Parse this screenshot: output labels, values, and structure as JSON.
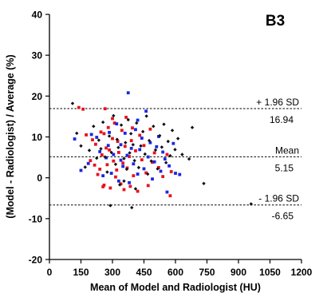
{
  "chart_data": {
    "type": "scatter",
    "panel_label": "B3",
    "xlabel": "Mean of Model and Radiologist (HU)",
    "ylabel": "(Model - Radiologist) / Average (%)",
    "xlim": [
      0,
      1200
    ],
    "ylim": [
      -20,
      40
    ],
    "xticks": [
      0,
      150,
      300,
      450,
      600,
      750,
      900,
      1050,
      1200
    ],
    "yticks": [
      -20,
      -10,
      0,
      10,
      20,
      30,
      40
    ],
    "grid": false,
    "legend": "none",
    "reference_lines": [
      {
        "label": "+ 1.96 SD",
        "value": 16.94,
        "value_label": "16.94"
      },
      {
        "label": "Mean",
        "value": 5.15,
        "value_label": "5.15"
      },
      {
        "label": "- 1.96 SD",
        "value": -6.65,
        "value_label": "-6.65"
      }
    ],
    "series": [
      {
        "color": "#e8121e",
        "points": [
          [
            140,
            17.2
          ],
          [
            160,
            16.8
          ],
          [
            175,
            10.5
          ],
          [
            195,
            4.2
          ],
          [
            205,
            9.3
          ],
          [
            215,
            3.1
          ],
          [
            220,
            8.2
          ],
          [
            230,
            0.8
          ],
          [
            240,
            2.1
          ],
          [
            245,
            11.2
          ],
          [
            250,
            5.6
          ],
          [
            255,
            -2.2
          ],
          [
            260,
            -1.8
          ],
          [
            265,
            16.9
          ],
          [
            270,
            7.3
          ],
          [
            275,
            3.2
          ],
          [
            280,
            12.3
          ],
          [
            285,
            6.8
          ],
          [
            290,
            -2.5
          ],
          [
            300,
            9.6
          ],
          [
            305,
            4.1
          ],
          [
            310,
            13.4
          ],
          [
            315,
            0.2
          ],
          [
            320,
            1.9
          ],
          [
            325,
            8.9
          ],
          [
            330,
            6.2
          ],
          [
            340,
            -1.5
          ],
          [
            345,
            11.6
          ],
          [
            350,
            3.6
          ],
          [
            355,
            -2.9
          ],
          [
            360,
            7.7
          ],
          [
            365,
            14.8
          ],
          [
            370,
            2.4
          ],
          [
            380,
            5.2
          ],
          [
            385,
            -2.1
          ],
          [
            390,
            9.1
          ],
          [
            395,
            12.2
          ],
          [
            400,
            0.5
          ],
          [
            410,
            6.6
          ],
          [
            420,
            -3.3
          ],
          [
            430,
            10.4
          ],
          [
            440,
            4.4
          ],
          [
            450,
            7.9
          ],
          [
            460,
            1.2
          ],
          [
            470,
            -1.9
          ],
          [
            480,
            11.9
          ],
          [
            490,
            3.8
          ],
          [
            500,
            6.1
          ],
          [
            520,
            2.5
          ],
          [
            540,
            0.3
          ],
          [
            560,
            5.7
          ],
          [
            575,
            -4.4
          ],
          [
            580,
            1.5
          ],
          [
            300,
            14.5
          ],
          [
            260,
            10.8
          ]
        ]
      },
      {
        "color": "#1a26e6",
        "points": [
          [
            120,
            9.5
          ],
          [
            150,
            1.8
          ],
          [
            185,
            3.5
          ],
          [
            200,
            10.6
          ],
          [
            225,
            9.9
          ],
          [
            240,
            6.4
          ],
          [
            255,
            0.5
          ],
          [
            270,
            4.9
          ],
          [
            285,
            11.1
          ],
          [
            295,
            1.1
          ],
          [
            305,
            5.7
          ],
          [
            320,
            13.2
          ],
          [
            330,
            -0.8
          ],
          [
            340,
            8.1
          ],
          [
            350,
            2.8
          ],
          [
            360,
            10.9
          ],
          [
            370,
            5.5
          ],
          [
            375,
            20.8
          ],
          [
            380,
            -1.2
          ],
          [
            390,
            7.2
          ],
          [
            400,
            3.4
          ],
          [
            410,
            11.8
          ],
          [
            420,
            0.9
          ],
          [
            430,
            6.9
          ],
          [
            440,
            9.7
          ],
          [
            450,
            2.2
          ],
          [
            460,
            16.3
          ],
          [
            470,
            5.1
          ],
          [
            480,
            8.6
          ],
          [
            490,
            -0.3
          ],
          [
            500,
            3.9
          ],
          [
            510,
            7.6
          ],
          [
            520,
            10.1
          ],
          [
            530,
            1.6
          ],
          [
            540,
            6.3
          ],
          [
            550,
            4.6
          ],
          [
            560,
            -3.5
          ],
          [
            570,
            2.9
          ],
          [
            590,
            8.4
          ],
          [
            600,
            1.1
          ],
          [
            620,
            0.8
          ],
          [
            340,
            4.3
          ],
          [
            280,
            7.9
          ],
          [
            420,
            14.1
          ]
        ]
      },
      {
        "color": "#111111",
        "points": [
          [
            110,
            18.2
          ],
          [
            130,
            10.9
          ],
          [
            150,
            7.8
          ],
          [
            170,
            2.6
          ],
          [
            190,
            6.7
          ],
          [
            210,
            12.6
          ],
          [
            225,
            4.8
          ],
          [
            235,
            9.2
          ],
          [
            245,
            7.1
          ],
          [
            255,
            13.6
          ],
          [
            265,
            5.1
          ],
          [
            275,
            1.4
          ],
          [
            285,
            10.2
          ],
          [
            295,
            6.2
          ],
          [
            305,
            15.2
          ],
          [
            315,
            3.3
          ],
          [
            322,
            9.4
          ],
          [
            328,
            7.4
          ],
          [
            335,
            -1.7
          ],
          [
            342,
            12.9
          ],
          [
            355,
            4.7
          ],
          [
            362,
            8.6
          ],
          [
            368,
            2.1
          ],
          [
            375,
            14.2
          ],
          [
            382,
            6.1
          ],
          [
            388,
            10.8
          ],
          [
            392,
            -7.3
          ],
          [
            398,
            8.1
          ],
          [
            405,
            4.2
          ],
          [
            415,
            13.4
          ],
          [
            425,
            2.5
          ],
          [
            435,
            7.8
          ],
          [
            445,
            11.3
          ],
          [
            455,
            5.8
          ],
          [
            462,
            15.1
          ],
          [
            468,
            0.9
          ],
          [
            475,
            9.1
          ],
          [
            485,
            4.1
          ],
          [
            495,
            12.6
          ],
          [
            505,
            6.8
          ],
          [
            515,
            2.2
          ],
          [
            525,
            10.3
          ],
          [
            535,
            7.5
          ],
          [
            545,
            13.1
          ],
          [
            555,
            3.7
          ],
          [
            565,
            8.9
          ],
          [
            575,
            5.4
          ],
          [
            585,
            11.6
          ],
          [
            598,
            6.9
          ],
          [
            612,
            9.6
          ],
          [
            632,
            5.7
          ],
          [
            665,
            4.6
          ],
          [
            680,
            12.3
          ],
          [
            735,
            -1.4
          ],
          [
            960,
            -6.4
          ],
          [
            355,
            -0.8
          ],
          [
            410,
            -2.7
          ],
          [
            290,
            -6.8
          ]
        ]
      }
    ]
  }
}
